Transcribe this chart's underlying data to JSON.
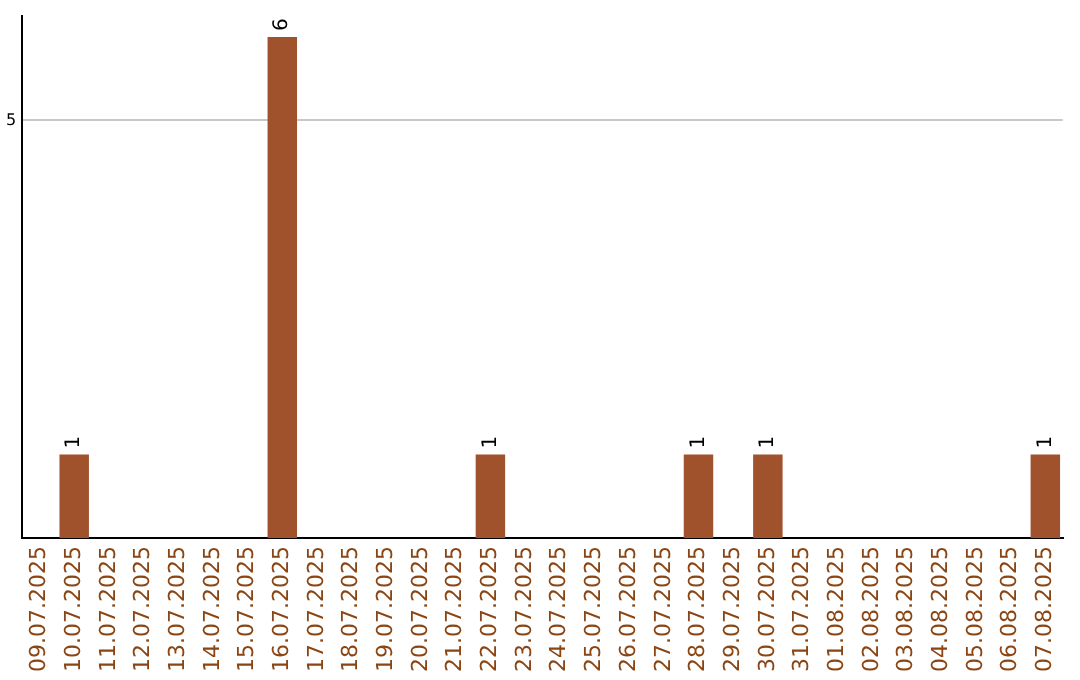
{
  "chart_data": {
    "type": "bar",
    "categories": [
      "09.07.2025",
      "10.07.2025",
      "11.07.2025",
      "12.07.2025",
      "13.07.2025",
      "14.07.2025",
      "15.07.2025",
      "16.07.2025",
      "17.07.2025",
      "18.07.2025",
      "19.07.2025",
      "20.07.2025",
      "21.07.2025",
      "22.07.2025",
      "23.07.2025",
      "24.07.2025",
      "25.07.2025",
      "26.07.2025",
      "27.07.2025",
      "28.07.2025",
      "29.07.2025",
      "30.07.2025",
      "31.07.2025",
      "01.08.2025",
      "02.08.2025",
      "03.08.2025",
      "04.08.2025",
      "05.08.2025",
      "06.08.2025",
      "07.08.2025"
    ],
    "values": [
      0,
      1,
      0,
      0,
      0,
      0,
      0,
      6,
      0,
      0,
      0,
      0,
      0,
      1,
      0,
      0,
      0,
      0,
      0,
      1,
      0,
      1,
      0,
      0,
      0,
      0,
      0,
      0,
      0,
      1
    ],
    "value_labels": [
      null,
      "1",
      null,
      null,
      null,
      null,
      null,
      "6",
      null,
      null,
      null,
      null,
      null,
      "1",
      null,
      null,
      null,
      null,
      null,
      "1",
      null,
      "1",
      null,
      null,
      null,
      null,
      null,
      null,
      null,
      "1"
    ],
    "color": "#a0522d",
    "ylim": [
      0,
      6.25
    ],
    "yticks": [
      5
    ],
    "grid": "y",
    "legend": false
  }
}
